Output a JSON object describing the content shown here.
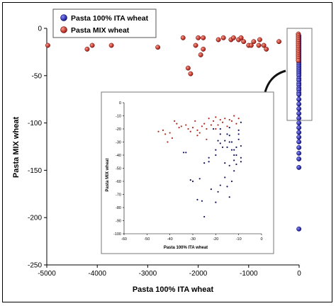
{
  "chart_data": {
    "type": "scatter",
    "xlabel": "Pasta 100% ITA wheat",
    "ylabel": "Pasta MIX wheat",
    "xlim": [
      -5000,
      0
    ],
    "ylim": [
      -250,
      0
    ],
    "xticks": [
      "-5000",
      "-4000",
      "-3000",
      "-2000",
      "-1000",
      "0"
    ],
    "yticks": [
      "0",
      "-50",
      "-100",
      "-150",
      "-200",
      "-250"
    ],
    "legend_position": "top-left",
    "series": [
      {
        "name": "Pasta 100% ITA wheat",
        "color": "#1a1a9e",
        "points": [
          [
            -5,
            -8
          ],
          [
            -5,
            -10
          ],
          [
            -5,
            -12
          ],
          [
            -5,
            -14
          ],
          [
            -5,
            -16
          ],
          [
            -5,
            -18
          ],
          [
            -5,
            -20
          ],
          [
            -5,
            -22
          ],
          [
            -5,
            -24
          ],
          [
            -5,
            -26
          ],
          [
            -5,
            -28
          ],
          [
            -5,
            -30
          ],
          [
            -5,
            -32
          ],
          [
            -5,
            -34
          ],
          [
            -5,
            -36
          ],
          [
            -5,
            -38
          ],
          [
            -5,
            -40
          ],
          [
            -5,
            -42
          ],
          [
            -5,
            -44
          ],
          [
            -5,
            -46
          ],
          [
            -5,
            -48
          ],
          [
            -5,
            -50
          ],
          [
            -5,
            -53
          ],
          [
            -5,
            -55
          ],
          [
            -5,
            -58
          ],
          [
            -5,
            -60
          ],
          [
            -5,
            -63
          ],
          [
            -5,
            -65
          ],
          [
            -5,
            -68
          ],
          [
            -5,
            -70
          ],
          [
            -5,
            -75
          ],
          [
            -5,
            -80
          ],
          [
            -5,
            -85
          ],
          [
            -5,
            -90
          ],
          [
            -5,
            -95
          ],
          [
            -5,
            -100
          ],
          [
            -5,
            -105
          ],
          [
            -5,
            -110
          ],
          [
            -5,
            -115
          ],
          [
            -5,
            -120
          ],
          [
            -5,
            -126
          ],
          [
            -5,
            -132
          ],
          [
            -5,
            -138
          ],
          [
            -5,
            -147
          ],
          [
            -5,
            -212
          ]
        ]
      },
      {
        "name": "Pasta MIX wheat",
        "color": "#c0281e",
        "points": [
          [
            -4980,
            -18
          ],
          [
            -4200,
            -22
          ],
          [
            -4100,
            -18
          ],
          [
            -3720,
            -18
          ],
          [
            -2800,
            -20
          ],
          [
            -2300,
            -10
          ],
          [
            -2200,
            -42
          ],
          [
            -2150,
            -48
          ],
          [
            -2050,
            -18
          ],
          [
            -2000,
            -10
          ],
          [
            -1950,
            -28
          ],
          [
            -1900,
            -10
          ],
          [
            -1900,
            -22
          ],
          [
            -1600,
            -12
          ],
          [
            -1500,
            -10
          ],
          [
            -1350,
            -12
          ],
          [
            -1300,
            -10
          ],
          [
            -1200,
            -12
          ],
          [
            -1150,
            -10
          ],
          [
            -1100,
            -14
          ],
          [
            -1000,
            -18
          ],
          [
            -950,
            -18
          ],
          [
            -900,
            -14
          ],
          [
            -800,
            -18
          ],
          [
            -780,
            -12
          ],
          [
            -700,
            -18
          ],
          [
            -650,
            -22
          ],
          [
            -400,
            -14
          ],
          [
            -15,
            -6
          ],
          [
            -15,
            -8
          ],
          [
            -15,
            -10
          ],
          [
            -15,
            -12
          ],
          [
            -15,
            -14
          ],
          [
            -15,
            -16
          ],
          [
            -15,
            -18
          ],
          [
            -15,
            -20
          ],
          [
            -15,
            -22
          ],
          [
            -15,
            -24
          ],
          [
            -15,
            -26
          ],
          [
            -15,
            -28
          ],
          [
            -15,
            -30
          ],
          [
            -15,
            -32
          ],
          [
            -15,
            -34
          ]
        ]
      }
    ],
    "inset": {
      "xlabel": "Pasta 100% ITA wheat",
      "ylabel": "Pasta MIX wheat",
      "xlim": [
        -60,
        0
      ],
      "ylim": [
        -100,
        0
      ],
      "xticks": [
        "-60",
        "-50",
        "-40",
        "-30",
        "-20",
        "-10",
        "0"
      ],
      "yticks": [
        "0",
        "-10",
        "-20",
        "-30",
        "-40",
        "-50",
        "-60",
        "-70",
        "-80",
        "-90",
        "-100"
      ],
      "blue_points": [
        [
          -34,
          -38
        ],
        [
          -33,
          -38
        ],
        [
          -30,
          -60
        ],
        [
          -31,
          -59
        ],
        [
          -28,
          -74
        ],
        [
          -27,
          -58
        ],
        [
          -26,
          -75
        ],
        [
          -25,
          -46
        ],
        [
          -23,
          -45
        ],
        [
          -23,
          -42
        ],
        [
          -21,
          -20
        ],
        [
          -20,
          -40
        ],
        [
          -20,
          -36
        ],
        [
          -19,
          -29
        ],
        [
          -18,
          -24
        ],
        [
          -18,
          -31
        ],
        [
          -17,
          -34
        ],
        [
          -16,
          -29
        ],
        [
          -16,
          -57
        ],
        [
          -15,
          -34
        ],
        [
          -15,
          -24
        ],
        [
          -14,
          -30
        ],
        [
          -14,
          -25
        ],
        [
          -14,
          -19
        ],
        [
          -13,
          -36
        ],
        [
          -12,
          -40
        ],
        [
          -12,
          -44
        ],
        [
          -11,
          -34
        ],
        [
          -11,
          -40
        ],
        [
          -10,
          -21
        ],
        [
          -10,
          -24
        ],
        [
          -9,
          -45
        ],
        [
          -9,
          -42
        ],
        [
          -9,
          -15
        ],
        [
          -16,
          -46
        ],
        [
          -14,
          -48
        ],
        [
          -18,
          -63
        ],
        [
          -15,
          -64
        ],
        [
          -13,
          -60
        ],
        [
          -14,
          -72
        ],
        [
          -11,
          -47
        ],
        [
          -10,
          -28
        ],
        [
          -13,
          -30
        ],
        [
          -12,
          -36
        ],
        [
          -25,
          -87
        ],
        [
          -20,
          -76
        ],
        [
          -22,
          -66
        ],
        [
          -19,
          -68
        ],
        [
          -12,
          -52
        ],
        [
          -18,
          -20
        ],
        [
          -9,
          -33
        ]
      ],
      "red_points": [
        [
          -45,
          -22
        ],
        [
          -43,
          -21
        ],
        [
          -42,
          -24
        ],
        [
          -41,
          -30
        ],
        [
          -40,
          -23
        ],
        [
          -39,
          -27
        ],
        [
          -38,
          -14
        ],
        [
          -37,
          -16
        ],
        [
          -36,
          -19
        ],
        [
          -35,
          -18
        ],
        [
          -33,
          -17
        ],
        [
          -32,
          -20
        ],
        [
          -31,
          -22
        ],
        [
          -30,
          -19
        ],
        [
          -29,
          -14
        ],
        [
          -28,
          -21
        ],
        [
          -27,
          -23
        ],
        [
          -26,
          -18
        ],
        [
          -25,
          -16
        ],
        [
          -24,
          -20
        ],
        [
          -23,
          -12
        ],
        [
          -22,
          -17
        ],
        [
          -21,
          -14
        ],
        [
          -20,
          -11
        ],
        [
          -19,
          -17
        ],
        [
          -18,
          -13
        ],
        [
          -17,
          -15
        ],
        [
          -16,
          -12
        ],
        [
          -15,
          -18
        ],
        [
          -14,
          -13
        ],
        [
          -13,
          -14
        ],
        [
          -12,
          -10
        ],
        [
          -11,
          -16
        ],
        [
          -10,
          -12
        ],
        [
          -28,
          -25
        ],
        [
          -24,
          -28
        ],
        [
          -20,
          -20
        ]
      ]
    }
  }
}
